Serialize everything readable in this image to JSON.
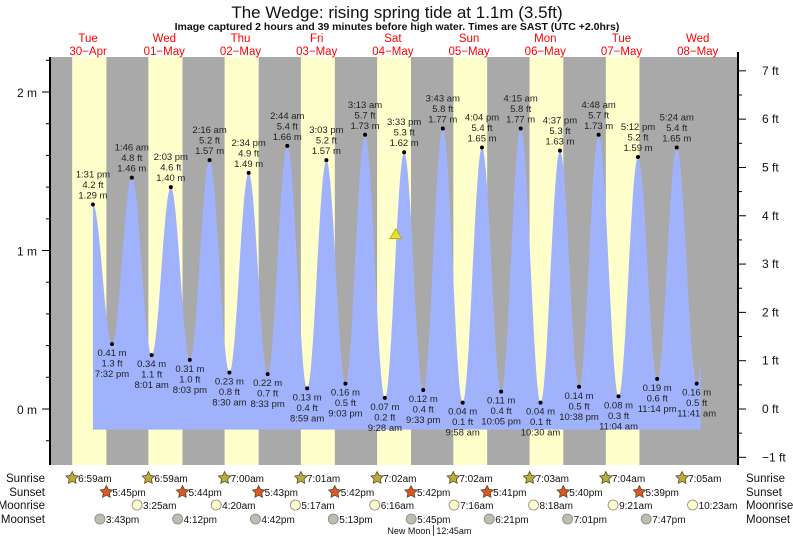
{
  "chart_data": {
    "type": "area",
    "title": "The Wedge: rising  spring tide at 1.1m (3.5ft)",
    "subtitle": "Image captured 2 hours and 39 minutes before high water. Times are SAST (UTC +2.0hrs)",
    "days": [
      {
        "dow": "Tue",
        "date": "30−Apr"
      },
      {
        "dow": "Wed",
        "date": "01−May"
      },
      {
        "dow": "Thu",
        "date": "02−May"
      },
      {
        "dow": "Fri",
        "date": "03−May"
      },
      {
        "dow": "Sat",
        "date": "04−May"
      },
      {
        "dow": "Sun",
        "date": "05−May"
      },
      {
        "dow": "Mon",
        "date": "06−May"
      },
      {
        "dow": "Tue",
        "date": "07−May"
      },
      {
        "dow": "Wed",
        "date": "08−May"
      }
    ],
    "left_axis": {
      "unit": "m",
      "ticks": [
        "0 m",
        "1 m",
        "2 m"
      ],
      "range": [
        -0.35,
        2.22
      ]
    },
    "right_axis": {
      "unit": "ft",
      "ticks": [
        "−1 ft",
        "0 ft",
        "1 ft",
        "2 ft",
        "3 ft",
        "4 ft",
        "5 ft",
        "6 ft",
        "7 ft"
      ]
    },
    "tides": [
      {
        "day": 0,
        "type": "high",
        "time": "1:31 pm",
        "ft": "4.2 ft",
        "m": 1.29
      },
      {
        "day": 0,
        "type": "low",
        "time": "7:32 pm",
        "ft": "1.3 ft",
        "m": 0.41
      },
      {
        "day": 1,
        "type": "high",
        "time": "1:46 am",
        "ft": "4.8 ft",
        "m": 1.46
      },
      {
        "day": 1,
        "type": "low",
        "time": "8:01 am",
        "ft": "1.1 ft",
        "m": 0.34
      },
      {
        "day": 1,
        "type": "high",
        "time": "2:03 pm",
        "ft": "4.6 ft",
        "m": 1.4
      },
      {
        "day": 1,
        "type": "low",
        "time": "8:03 pm",
        "ft": "1.0 ft",
        "m": 0.31
      },
      {
        "day": 2,
        "type": "high",
        "time": "2:16 am",
        "ft": "5.2 ft",
        "m": 1.57
      },
      {
        "day": 2,
        "type": "low",
        "time": "8:30 am",
        "ft": "0.8 ft",
        "m": 0.23
      },
      {
        "day": 2,
        "type": "high",
        "time": "2:34 pm",
        "ft": "4.9 ft",
        "m": 1.49
      },
      {
        "day": 2,
        "type": "low",
        "time": "8:33 pm",
        "ft": "0.7 ft",
        "m": 0.22
      },
      {
        "day": 3,
        "type": "high",
        "time": "2:44 am",
        "ft": "5.4 ft",
        "m": 1.66
      },
      {
        "day": 3,
        "type": "low",
        "time": "8:59 am",
        "ft": "0.4 ft",
        "m": 0.13
      },
      {
        "day": 3,
        "type": "high",
        "time": "3:03 pm",
        "ft": "5.2 ft",
        "m": 1.57
      },
      {
        "day": 3,
        "type": "low",
        "time": "9:03 pm",
        "ft": "0.5 ft",
        "m": 0.16
      },
      {
        "day": 4,
        "type": "high",
        "time": "3:13 am",
        "ft": "5.7 ft",
        "m": 1.73
      },
      {
        "day": 4,
        "type": "low",
        "time": "9:28 am",
        "ft": "0.2 ft",
        "m": 0.07
      },
      {
        "day": 4,
        "type": "high",
        "time": "3:33 pm",
        "ft": "5.3 ft",
        "m": 1.62
      },
      {
        "day": 4,
        "type": "low",
        "time": "9:33 pm",
        "ft": "0.4 ft",
        "m": 0.12
      },
      {
        "day": 5,
        "type": "high",
        "time": "3:43 am",
        "ft": "5.8 ft",
        "m": 1.77
      },
      {
        "day": 5,
        "type": "low",
        "time": "9:58 am",
        "ft": "0.1 ft",
        "m": 0.04
      },
      {
        "day": 5,
        "type": "high",
        "time": "4:04 pm",
        "ft": "5.4 ft",
        "m": 1.65
      },
      {
        "day": 5,
        "type": "low",
        "time": "10:05 pm",
        "ft": "0.4 ft",
        "m": 0.11
      },
      {
        "day": 6,
        "type": "high",
        "time": "4:15 am",
        "ft": "5.8 ft",
        "m": 1.77
      },
      {
        "day": 6,
        "type": "low",
        "time": "10:30 am",
        "ft": "0.1 ft",
        "m": 0.04
      },
      {
        "day": 6,
        "type": "high",
        "time": "4:37 pm",
        "ft": "5.3 ft",
        "m": 1.63
      },
      {
        "day": 6,
        "type": "low",
        "time": "10:38 pm",
        "ft": "0.5 ft",
        "m": 0.14
      },
      {
        "day": 7,
        "type": "high",
        "time": "4:48 am",
        "ft": "5.7 ft",
        "m": 1.73
      },
      {
        "day": 7,
        "type": "low",
        "time": "11:04 am",
        "ft": "0.3 ft",
        "m": 0.08
      },
      {
        "day": 7,
        "type": "high",
        "time": "5:12 pm",
        "ft": "5.2 ft",
        "m": 1.59
      },
      {
        "day": 7,
        "type": "low",
        "time": "11:14 pm",
        "ft": "0.6 ft",
        "m": 0.19
      },
      {
        "day": 8,
        "type": "high",
        "time": "5:24 am",
        "ft": "5.4 ft",
        "m": 1.65
      },
      {
        "day": 8,
        "type": "low",
        "time": "11:41 am",
        "ft": "0.5 ft",
        "m": 0.16
      }
    ],
    "current": {
      "day": 4,
      "time": "12:54 pm",
      "m": 1.1,
      "marker_color": "#e8e030"
    },
    "rows": {
      "sunrise": {
        "label": "Sunrise",
        "items": [
          {
            "day": 0,
            "time": "6:59am"
          },
          {
            "day": 1,
            "time": "6:59am"
          },
          {
            "day": 2,
            "time": "7:00am"
          },
          {
            "day": 3,
            "time": "7:01am"
          },
          {
            "day": 4,
            "time": "7:02am"
          },
          {
            "day": 5,
            "time": "7:02am"
          },
          {
            "day": 6,
            "time": "7:03am"
          },
          {
            "day": 7,
            "time": "7:04am"
          },
          {
            "day": 8,
            "time": "7:05am"
          }
        ]
      },
      "sunset": {
        "label": "Sunset",
        "items": [
          {
            "day": 0,
            "time": "5:45pm"
          },
          {
            "day": 1,
            "time": "5:44pm"
          },
          {
            "day": 2,
            "time": "5:43pm"
          },
          {
            "day": 3,
            "time": "5:42pm"
          },
          {
            "day": 4,
            "time": "5:42pm"
          },
          {
            "day": 5,
            "time": "5:41pm"
          },
          {
            "day": 6,
            "time": "5:40pm"
          },
          {
            "day": 7,
            "time": "5:39pm"
          }
        ]
      },
      "moonrise": {
        "label": "Moonrise",
        "items": [
          {
            "day": 1,
            "time": "3:25am"
          },
          {
            "day": 2,
            "time": "4:20am"
          },
          {
            "day": 3,
            "time": "5:17am"
          },
          {
            "day": 4,
            "time": "6:16am"
          },
          {
            "day": 5,
            "time": "7:16am"
          },
          {
            "day": 6,
            "time": "8:18am"
          },
          {
            "day": 7,
            "time": "9:21am"
          },
          {
            "day": 8,
            "time": "10:23am"
          }
        ]
      },
      "moonset": {
        "label": "Moonset",
        "items": [
          {
            "day": 0,
            "time": "3:43pm"
          },
          {
            "day": 1,
            "time": "4:12pm"
          },
          {
            "day": 2,
            "time": "4:42pm"
          },
          {
            "day": 3,
            "time": "5:13pm"
          },
          {
            "day": 4,
            "time": "5:45pm"
          },
          {
            "day": 5,
            "time": "6:21pm"
          },
          {
            "day": 6,
            "time": "7:01pm"
          },
          {
            "day": 7,
            "time": "7:47pm"
          }
        ]
      }
    },
    "moon_phase": {
      "label": "New Moon",
      "time": "12:45am",
      "day": 5
    },
    "colors": {
      "water": "#a0b2fc",
      "day": "#ffffcc",
      "night": "#a9a9a9",
      "day_labels": "#ff0000",
      "sunrise": "#b8ac3c",
      "sunset": "#d8582a",
      "moonrise": "#ffffcc",
      "moonset": "#bdbdb0"
    }
  }
}
